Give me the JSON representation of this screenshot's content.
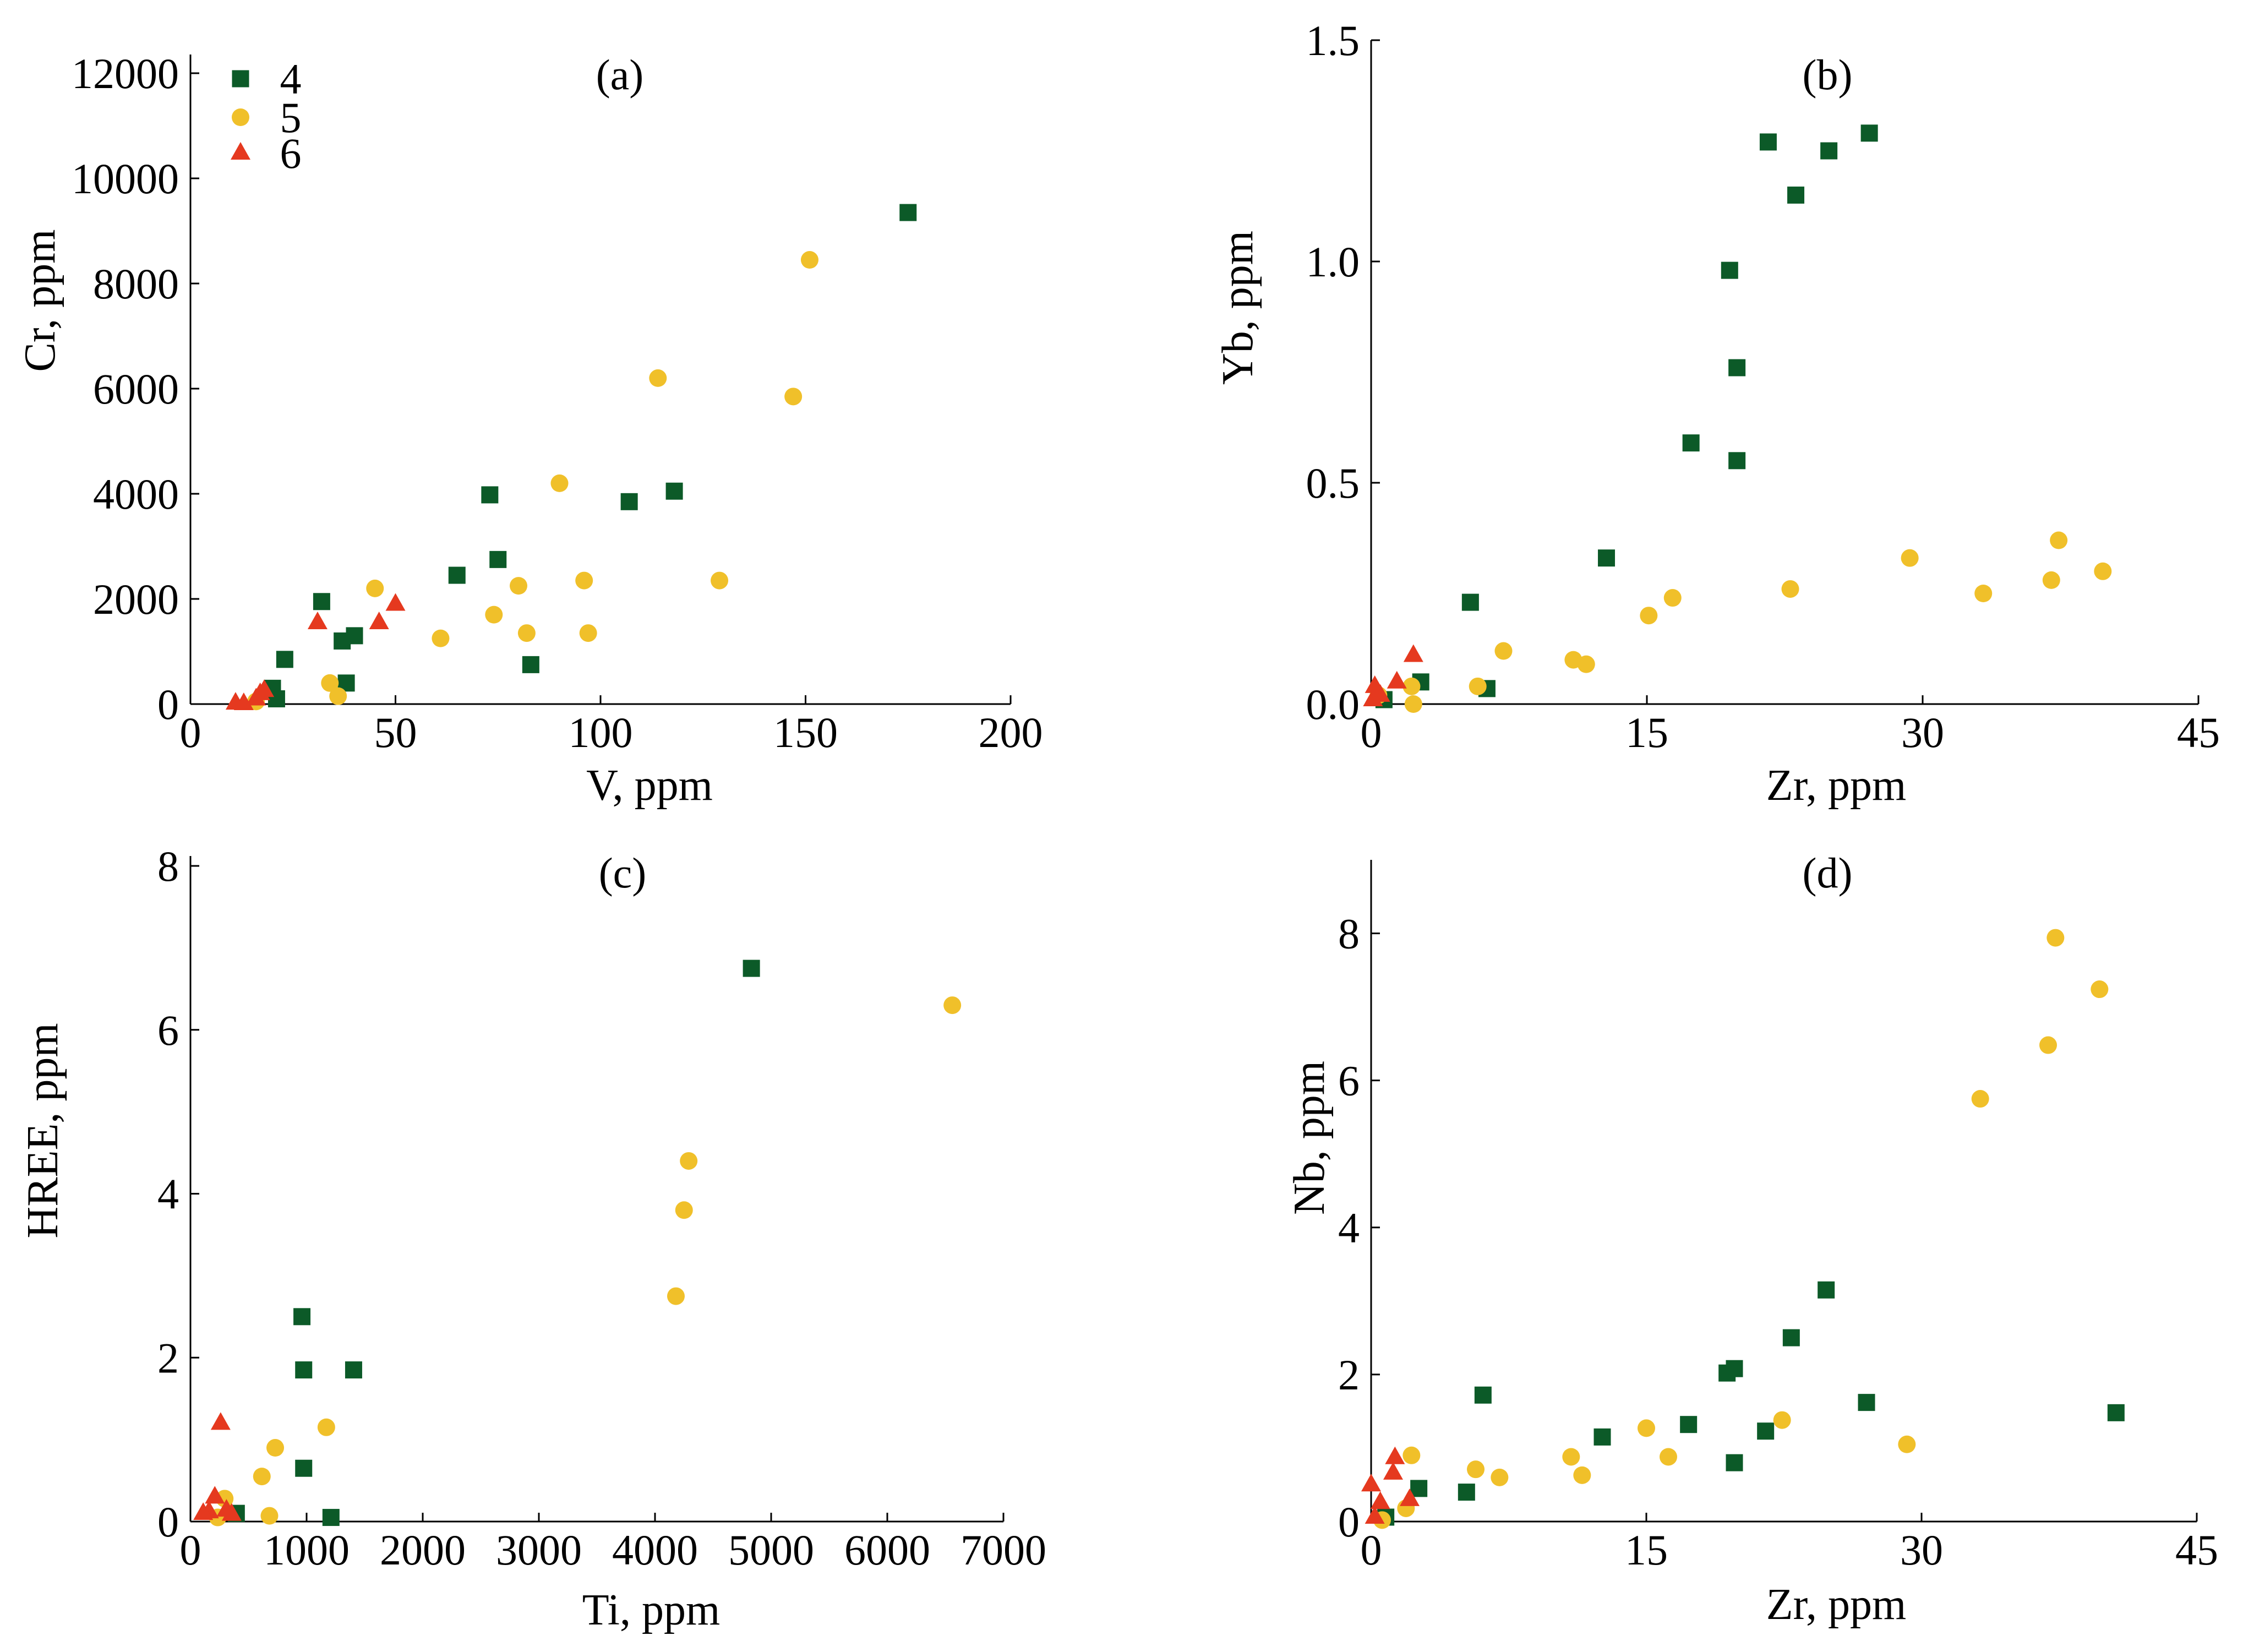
{
  "colors": {
    "axis": "#000000",
    "background": "#ffffff"
  },
  "legend": {
    "items": [
      {
        "label": "4",
        "marker": "square",
        "color": "#0c5a28"
      },
      {
        "label": "5",
        "marker": "circle",
        "color": "#f0c02a"
      },
      {
        "label": "6",
        "marker": "triangle",
        "color": "#e5391f"
      }
    ]
  },
  "chart_data": [
    {
      "type": "scatter",
      "title": "(a)",
      "xlabel": "V, ppm",
      "ylabel": "Cr, ppm",
      "xlim": [
        0,
        200
      ],
      "ylim": [
        0,
        12000
      ],
      "grid": false,
      "xticks": [
        0,
        50,
        100,
        150,
        200
      ],
      "xtick_labels": [
        "0",
        "50",
        "100",
        "150",
        "200"
      ],
      "yticks": [
        0,
        2000,
        4000,
        6000,
        8000,
        10000,
        12000
      ],
      "ytick_labels": [
        "0",
        "2000",
        "4000",
        "6000",
        "8000",
        "10000",
        "12000"
      ],
      "series": {
        "4": [
          [
            175,
            9350
          ],
          [
            118,
            4050
          ],
          [
            107,
            3850
          ],
          [
            73,
            3980
          ],
          [
            75,
            2750
          ],
          [
            65,
            2450
          ],
          [
            83,
            750
          ],
          [
            32,
            1950
          ],
          [
            40,
            1300
          ],
          [
            37,
            1200
          ],
          [
            38,
            400
          ],
          [
            23,
            850
          ],
          [
            20,
            300
          ],
          [
            21,
            100
          ]
        ],
        "5": [
          [
            151,
            8450
          ],
          [
            114,
            6200
          ],
          [
            147,
            5850
          ],
          [
            90,
            4200
          ],
          [
            129,
            2350
          ],
          [
            96,
            2350
          ],
          [
            80,
            2250
          ],
          [
            45,
            2200
          ],
          [
            74,
            1700
          ],
          [
            61,
            1250
          ],
          [
            82,
            1350
          ],
          [
            97,
            1350
          ],
          [
            34,
            400
          ],
          [
            36,
            150
          ],
          [
            16,
            50
          ]
        ],
        "6": [
          [
            50,
            1900
          ],
          [
            31,
            1550
          ],
          [
            46,
            1550
          ],
          [
            11,
            20
          ],
          [
            13,
            10
          ],
          [
            16,
            100
          ],
          [
            17,
            200
          ],
          [
            18,
            260
          ]
        ]
      }
    },
    {
      "type": "scatter",
      "title": "(b)",
      "xlabel": "Zr, ppm",
      "ylabel": "Yb, ppm",
      "xlim": [
        0,
        45
      ],
      "ylim": [
        0,
        1.5
      ],
      "grid": false,
      "xticks": [
        0,
        15,
        30,
        45
      ],
      "xtick_labels": [
        "0",
        "15",
        "30",
        "45"
      ],
      "yticks": [
        0,
        0.5,
        1.0,
        1.5
      ],
      "ytick_labels": [
        "0.0",
        "0.5",
        "1.0",
        "1.5"
      ],
      "series": {
        "4": [
          [
            27.1,
            1.29
          ],
          [
            21.6,
            1.27
          ],
          [
            24.9,
            1.25
          ],
          [
            23.1,
            1.15
          ],
          [
            19.5,
            0.98
          ],
          [
            19.9,
            0.76
          ],
          [
            17.4,
            0.59
          ],
          [
            19.9,
            0.55
          ],
          [
            12.8,
            0.33
          ],
          [
            5.4,
            0.23
          ],
          [
            2.7,
            0.05
          ],
          [
            6.3,
            0.035
          ],
          [
            0.7,
            0.01
          ]
        ],
        "5": [
          [
            37.4,
            0.37
          ],
          [
            39.8,
            0.3
          ],
          [
            29.3,
            0.33
          ],
          [
            37.0,
            0.28
          ],
          [
            33.3,
            0.25
          ],
          [
            22.8,
            0.26
          ],
          [
            16.4,
            0.24
          ],
          [
            15.1,
            0.2
          ],
          [
            7.2,
            0.12
          ],
          [
            11.0,
            0.1
          ],
          [
            11.7,
            0.09
          ],
          [
            5.8,
            0.04
          ],
          [
            2.2,
            0.04
          ],
          [
            2.3,
            0.0
          ],
          [
            0.4,
            0.02
          ]
        ],
        "6": [
          [
            2.3,
            0.11
          ],
          [
            1.4,
            0.05
          ],
          [
            0.2,
            0.04
          ],
          [
            0.5,
            0.02
          ],
          [
            0.1,
            0.01
          ]
        ]
      }
    },
    {
      "type": "scatter",
      "title": "(c)",
      "xlabel": "Ti, ppm",
      "ylabel": "HREE, ppm",
      "xlim": [
        0,
        7000
      ],
      "ylim": [
        0,
        8
      ],
      "grid": false,
      "xticks": [
        0,
        1000,
        2000,
        3000,
        4000,
        5000,
        6000,
        7000
      ],
      "xtick_labels": [
        "0",
        "1000",
        "2000",
        "3000",
        "4000",
        "5000",
        "6000",
        "7000"
      ],
      "yticks": [
        0,
        2,
        4,
        6,
        8
      ],
      "ytick_labels": [
        "0",
        "2",
        "4",
        "6",
        "8"
      ],
      "series": {
        "4": [
          [
            4830,
            6.75
          ],
          [
            960,
            2.5
          ],
          [
            975,
            1.85
          ],
          [
            1405,
            1.85
          ],
          [
            975,
            0.65
          ],
          [
            1210,
            0.05
          ],
          [
            395,
            0.1
          ]
        ],
        "5": [
          [
            6560,
            6.3
          ],
          [
            4290,
            4.4
          ],
          [
            4250,
            3.8
          ],
          [
            4180,
            2.75
          ],
          [
            1170,
            1.15
          ],
          [
            730,
            0.9
          ],
          [
            615,
            0.55
          ],
          [
            680,
            0.07
          ],
          [
            295,
            0.28
          ],
          [
            235,
            0.05
          ]
        ],
        "6": [
          [
            260,
            1.2
          ],
          [
            210,
            0.3
          ],
          [
            160,
            0.12
          ],
          [
            110,
            0.1
          ],
          [
            310,
            0.14
          ],
          [
            355,
            0.09
          ]
        ]
      }
    },
    {
      "type": "scatter",
      "title": "(d)",
      "xlabel": "Zr, ppm",
      "ylabel": "Nb, ppm",
      "xlim": [
        0,
        45
      ],
      "ylim": [
        0,
        9
      ],
      "grid": false,
      "xticks": [
        0,
        15,
        30,
        45
      ],
      "xtick_labels": [
        "0",
        "15",
        "30",
        "45"
      ],
      "yticks": [
        0,
        2,
        4,
        6,
        8
      ],
      "ytick_labels": [
        "0",
        "2",
        "4",
        "6",
        "8"
      ],
      "series": {
        "4": [
          [
            24.8,
            3.15
          ],
          [
            22.9,
            2.5
          ],
          [
            19.8,
            2.08
          ],
          [
            19.4,
            2.02
          ],
          [
            6.1,
            1.72
          ],
          [
            27.0,
            1.62
          ],
          [
            40.6,
            1.48
          ],
          [
            17.3,
            1.32
          ],
          [
            21.5,
            1.23
          ],
          [
            12.6,
            1.15
          ],
          [
            19.8,
            0.8
          ],
          [
            2.6,
            0.45
          ],
          [
            5.2,
            0.4
          ],
          [
            0.8,
            0.06
          ]
        ],
        "5": [
          [
            37.3,
            7.94
          ],
          [
            39.7,
            7.24
          ],
          [
            36.9,
            6.48
          ],
          [
            33.2,
            5.75
          ],
          [
            22.4,
            1.38
          ],
          [
            15.0,
            1.27
          ],
          [
            29.2,
            1.05
          ],
          [
            16.2,
            0.88
          ],
          [
            10.9,
            0.88
          ],
          [
            2.2,
            0.9
          ],
          [
            5.7,
            0.71
          ],
          [
            7.0,
            0.6
          ],
          [
            11.5,
            0.63
          ],
          [
            1.9,
            0.18
          ],
          [
            0.6,
            0.02
          ]
        ],
        "6": [
          [
            0.0,
            0.5
          ],
          [
            1.3,
            0.87
          ],
          [
            1.2,
            0.66
          ],
          [
            2.1,
            0.3
          ],
          [
            0.5,
            0.26
          ],
          [
            0.2,
            0.06
          ]
        ]
      }
    }
  ]
}
